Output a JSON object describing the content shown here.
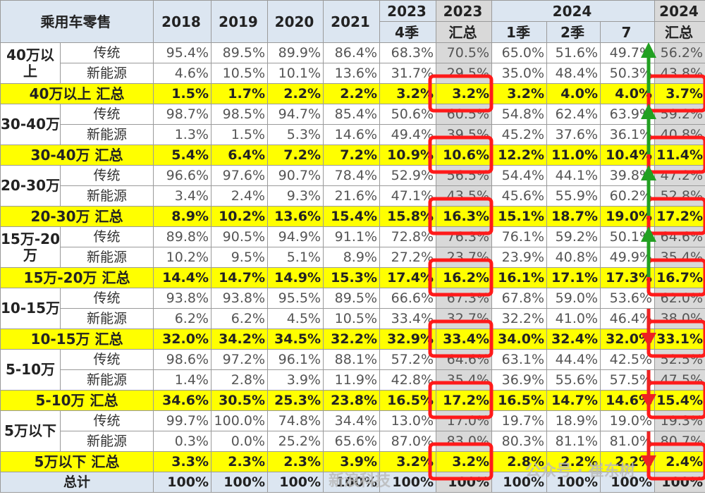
{
  "header": {
    "title": "乘用车零售",
    "years": [
      "2018",
      "2019",
      "2020",
      "2021"
    ],
    "col_2023_top": "2023",
    "col_2023_q4": "4季",
    "col_2023_total_top": "2023",
    "col_2023_total_bottom": "汇总",
    "col_2024_top": "2024",
    "col_2024_q1": "1季",
    "col_2024_q2": "2季",
    "col_2024_m7": "7",
    "col_2024_total_top": "2024",
    "col_2024_total_bottom": "汇总"
  },
  "groups": [
    {
      "label": "40万以上",
      "rows": [
        {
          "name": "传统",
          "values": [
            "95.4%",
            "89.5%",
            "89.9%",
            "86.4%",
            "68.3%",
            "70.5%",
            "65.0%",
            "51.6%",
            "49.7%",
            "56.2%"
          ]
        },
        {
          "name": "新能源",
          "values": [
            "4.6%",
            "10.5%",
            "10.1%",
            "13.6%",
            "31.7%",
            "29.5%",
            "35.0%",
            "48.4%",
            "50.3%",
            "43.8%"
          ]
        }
      ],
      "summary": {
        "name": "40万以上 汇总",
        "values": [
          "1.5%",
          "1.7%",
          "2.2%",
          "2.2%",
          "3.2%",
          "3.2%",
          "3.2%",
          "4.0%",
          "4.0%",
          "3.7%"
        ]
      }
    },
    {
      "label": "30-40万",
      "rows": [
        {
          "name": "传统",
          "values": [
            "98.7%",
            "98.5%",
            "94.7%",
            "85.4%",
            "50.6%",
            "60.5%",
            "54.8%",
            "62.4%",
            "63.9%",
            "59.2%"
          ]
        },
        {
          "name": "新能源",
          "values": [
            "1.3%",
            "1.5%",
            "5.3%",
            "14.6%",
            "49.4%",
            "39.5%",
            "45.2%",
            "37.6%",
            "36.1%",
            "40.8%"
          ]
        }
      ],
      "summary": {
        "name": "30-40万 汇总",
        "values": [
          "5.4%",
          "6.4%",
          "7.2%",
          "7.2%",
          "10.9%",
          "10.6%",
          "12.2%",
          "11.0%",
          "10.4%",
          "11.4%"
        ]
      }
    },
    {
      "label": "20-30万",
      "rows": [
        {
          "name": "传统",
          "values": [
            "96.6%",
            "97.6%",
            "90.7%",
            "78.4%",
            "52.9%",
            "56.5%",
            "54.4%",
            "44.1%",
            "39.8%",
            "47.2%"
          ]
        },
        {
          "name": "新能源",
          "values": [
            "3.4%",
            "2.4%",
            "9.3%",
            "21.6%",
            "47.1%",
            "43.5%",
            "45.6%",
            "55.9%",
            "60.2%",
            "52.8%"
          ]
        }
      ],
      "summary": {
        "name": "20-30万 汇总",
        "values": [
          "8.9%",
          "10.2%",
          "13.6%",
          "15.4%",
          "15.8%",
          "16.3%",
          "15.1%",
          "18.7%",
          "19.0%",
          "17.2%"
        ]
      }
    },
    {
      "label": "15万-20万",
      "rows": [
        {
          "name": "传统",
          "values": [
            "89.8%",
            "90.5%",
            "94.9%",
            "91.1%",
            "72.8%",
            "76.3%",
            "76.1%",
            "59.2%",
            "50.1%",
            "64.6%"
          ]
        },
        {
          "name": "新能源",
          "values": [
            "10.2%",
            "9.5%",
            "5.1%",
            "8.9%",
            "27.2%",
            "23.7%",
            "23.9%",
            "40.8%",
            "49.9%",
            "35.4%"
          ]
        }
      ],
      "summary": {
        "name": "15万-20万 汇总",
        "values": [
          "14.4%",
          "14.7%",
          "14.9%",
          "15.3%",
          "17.4%",
          "16.2%",
          "16.1%",
          "17.1%",
          "17.3%",
          "16.7%"
        ]
      }
    },
    {
      "label": "10-15万",
      "rows": [
        {
          "name": "传统",
          "values": [
            "93.8%",
            "93.8%",
            "95.5%",
            "89.5%",
            "66.6%",
            "67.3%",
            "67.8%",
            "59.0%",
            "53.6%",
            "62.0%"
          ]
        },
        {
          "name": "新能源",
          "values": [
            "6.2%",
            "6.2%",
            "4.5%",
            "10.5%",
            "33.4%",
            "32.7%",
            "32.2%",
            "41.0%",
            "46.4%",
            "38.0%"
          ]
        }
      ],
      "summary": {
        "name": "10-15万 汇总",
        "values": [
          "32.0%",
          "34.2%",
          "34.5%",
          "32.2%",
          "32.9%",
          "33.4%",
          "34.0%",
          "32.4%",
          "32.0%",
          "33.1%"
        ]
      }
    },
    {
      "label": "5-10万",
      "rows": [
        {
          "name": "传统",
          "values": [
            "98.6%",
            "97.2%",
            "96.1%",
            "88.1%",
            "57.2%",
            "64.6%",
            "63.1%",
            "44.4%",
            "42.5%",
            "52.5%"
          ]
        },
        {
          "name": "新能源",
          "values": [
            "1.4%",
            "2.8%",
            "3.9%",
            "11.9%",
            "42.8%",
            "35.4%",
            "36.9%",
            "55.6%",
            "57.5%",
            "47.5%"
          ]
        }
      ],
      "summary": {
        "name": "5-10万 汇总",
        "values": [
          "34.6%",
          "30.5%",
          "25.3%",
          "23.8%",
          "16.5%",
          "17.2%",
          "16.5%",
          "14.7%",
          "14.6%",
          "15.4%"
        ]
      }
    },
    {
      "label": "5万以下",
      "rows": [
        {
          "name": "传统",
          "values": [
            "99.7%",
            "100.0%",
            "74.8%",
            "34.4%",
            "13.0%",
            "17.0%",
            "19.7%",
            "18.9%",
            "19.0%",
            "19.3%"
          ]
        },
        {
          "name": "新能源",
          "values": [
            "0.3%",
            "0.0%",
            "25.2%",
            "65.6%",
            "87.0%",
            "83.0%",
            "80.3%",
            "81.1%",
            "81.0%",
            "80.7%"
          ]
        }
      ],
      "summary": {
        "name": "5万以下 汇总",
        "values": [
          "3.3%",
          "2.3%",
          "2.3%",
          "3.9%",
          "3.2%",
          "3.2%",
          "2.8%",
          "2.2%",
          "2.2%",
          "2.4%"
        ]
      }
    }
  ],
  "total": {
    "name": "总计",
    "values": [
      "100%",
      "100%",
      "100%",
      "100%",
      "100%",
      "100%",
      "100%",
      "100%",
      "100%",
      "100%"
    ]
  },
  "watermarks": {
    "left": "新浪科技",
    "right": "公众号 · 崔东树"
  },
  "colors": {
    "highlight": "#ffff00",
    "header_bg": "#dce6f1",
    "gray_col": "#d9d9d9",
    "box_red": "#ff1a1a",
    "arrow_green": "#22a022",
    "arrow_red": "#ee2222"
  }
}
